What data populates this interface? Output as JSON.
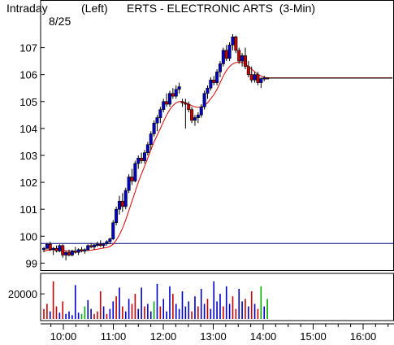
{
  "header": {
    "period": "Intraday",
    "date": "8/25",
    "axis_side": "(Left)",
    "title": "ERTS - ELECTRONIC ARTS  (3-Min)"
  },
  "chart_data": {
    "type": "candlestick",
    "symbol": "ERTS",
    "title": "ERTS - ELECTRONIC ARTS  (3-Min)",
    "y_ticks": [
      99,
      100,
      101,
      102,
      103,
      104,
      105,
      106,
      107
    ],
    "ylim": [
      98.8,
      107.5
    ],
    "x_ticks": [
      "10:00",
      "11:00",
      "12:00",
      "13:00",
      "14:00",
      "15:00",
      "16:00"
    ],
    "reference_level": 99.73,
    "volume_tick": 20000,
    "volume_ylim": [
      0,
      35000
    ],
    "colors": {
      "up": "#0000cc",
      "down": "#cc0000",
      "moving_average": "#dd0000",
      "reference": "#000080",
      "volume_green": "#00aa00"
    },
    "candles": [
      [
        99.5,
        99.6,
        99.4,
        99.55
      ],
      [
        99.55,
        99.75,
        99.5,
        99.7
      ],
      [
        99.7,
        99.8,
        99.45,
        99.5
      ],
      [
        99.5,
        99.6,
        99.3,
        99.55
      ],
      [
        99.55,
        99.65,
        99.4,
        99.45
      ],
      [
        99.45,
        99.7,
        99.4,
        99.65
      ],
      [
        99.65,
        99.7,
        99.2,
        99.3
      ],
      [
        99.3,
        99.45,
        99.1,
        99.4
      ],
      [
        99.4,
        99.5,
        99.25,
        99.3
      ],
      [
        99.3,
        99.5,
        99.25,
        99.45
      ],
      [
        99.45,
        99.6,
        99.35,
        99.4
      ],
      [
        99.4,
        99.55,
        99.3,
        99.5
      ],
      [
        99.5,
        99.6,
        99.4,
        99.45
      ],
      [
        99.45,
        99.55,
        99.35,
        99.5
      ],
      [
        99.5,
        99.7,
        99.45,
        99.65
      ],
      [
        99.65,
        99.75,
        99.55,
        99.6
      ],
      [
        99.6,
        99.7,
        99.5,
        99.68
      ],
      [
        99.68,
        99.8,
        99.6,
        99.7
      ],
      [
        99.7,
        99.85,
        99.6,
        99.65
      ],
      [
        99.65,
        99.75,
        99.55,
        99.72
      ],
      [
        99.72,
        99.85,
        99.65,
        99.8
      ],
      [
        99.8,
        99.95,
        99.7,
        99.9
      ],
      [
        99.9,
        100.6,
        99.85,
        100.5
      ],
      [
        100.5,
        101.1,
        100.4,
        101.0
      ],
      [
        101.0,
        101.5,
        100.8,
        101.3
      ],
      [
        101.3,
        101.6,
        100.9,
        101.1
      ],
      [
        101.1,
        101.8,
        101.0,
        101.7
      ],
      [
        101.7,
        102.3,
        101.6,
        102.2
      ],
      [
        102.2,
        102.5,
        101.9,
        102.05
      ],
      [
        102.05,
        102.8,
        102.0,
        102.7
      ],
      [
        102.7,
        103.0,
        102.5,
        102.9
      ],
      [
        102.9,
        103.1,
        102.7,
        102.8
      ],
      [
        102.8,
        103.2,
        102.7,
        103.1
      ],
      [
        103.1,
        103.5,
        103.0,
        103.4
      ],
      [
        103.4,
        103.9,
        103.2,
        103.8
      ],
      [
        103.8,
        104.3,
        103.7,
        104.2
      ],
      [
        104.2,
        104.5,
        103.9,
        104.4
      ],
      [
        104.4,
        104.8,
        104.2,
        104.7
      ],
      [
        104.7,
        105.1,
        104.6,
        105.0
      ],
      [
        105.0,
        105.3,
        104.8,
        104.9
      ],
      [
        104.9,
        105.4,
        104.8,
        105.3
      ],
      [
        105.3,
        105.5,
        105.1,
        105.2
      ],
      [
        105.2,
        105.6,
        105.1,
        105.45
      ],
      [
        105.45,
        105.7,
        105.3,
        105.55
      ],
      [
        105.0,
        105.1,
        104.8,
        104.95
      ],
      [
        104.95,
        105.1,
        104.0,
        104.9
      ],
      [
        104.9,
        105.0,
        104.6,
        104.7
      ],
      [
        104.7,
        104.8,
        104.2,
        104.3
      ],
      [
        104.3,
        104.5,
        104.1,
        104.4
      ],
      [
        104.4,
        104.6,
        104.2,
        104.5
      ],
      [
        104.5,
        104.9,
        104.4,
        104.8
      ],
      [
        104.8,
        105.4,
        104.7,
        105.3
      ],
      [
        105.3,
        105.6,
        105.1,
        105.5
      ],
      [
        105.5,
        105.9,
        105.4,
        105.8
      ],
      [
        105.8,
        105.95,
        105.6,
        105.7
      ],
      [
        105.7,
        106.2,
        105.6,
        106.1
      ],
      [
        106.1,
        106.5,
        105.9,
        106.4
      ],
      [
        106.4,
        107.0,
        106.3,
        106.9
      ],
      [
        106.9,
        107.1,
        106.5,
        106.6
      ],
      [
        106.6,
        107.2,
        106.5,
        107.1
      ],
      [
        107.1,
        107.5,
        106.9,
        107.4
      ],
      [
        107.4,
        107.45,
        106.8,
        106.9
      ],
      [
        106.9,
        107.0,
        106.4,
        106.5
      ],
      [
        106.5,
        106.8,
        106.3,
        106.7
      ],
      [
        106.7,
        107.0,
        106.2,
        106.3
      ],
      [
        106.3,
        106.5,
        105.9,
        106.0
      ],
      [
        106.0,
        106.3,
        105.7,
        105.8
      ],
      [
        105.8,
        106.1,
        105.7,
        106.0
      ],
      [
        106.0,
        106.1,
        105.6,
        105.7
      ],
      [
        105.7,
        105.9,
        105.5,
        105.85
      ],
      [
        105.85,
        105.95,
        105.75,
        105.88
      ],
      [
        105.88,
        105.9,
        105.84,
        105.87
      ]
    ],
    "moving_average": [
      99.45,
      99.47,
      99.49,
      99.5,
      99.5,
      99.5,
      99.48,
      99.46,
      99.45,
      99.45,
      99.45,
      99.45,
      99.45,
      99.46,
      99.47,
      99.48,
      99.5,
      99.52,
      99.54,
      99.56,
      99.58,
      99.62,
      99.7,
      99.85,
      100.05,
      100.3,
      100.6,
      100.95,
      101.3,
      101.65,
      102.0,
      102.3,
      102.6,
      102.9,
      103.2,
      103.5,
      103.75,
      104.0,
      104.25,
      104.5,
      104.7,
      104.85,
      104.95,
      105.0,
      105.0,
      104.95,
      104.9,
      104.85,
      104.8,
      104.78,
      104.8,
      104.85,
      104.95,
      105.1,
      105.25,
      105.45,
      105.7,
      105.95,
      106.15,
      106.3,
      106.4,
      106.45,
      106.45,
      106.45,
      106.4,
      106.3,
      106.2,
      106.1,
      106.0,
      105.95,
      105.9,
      105.88
    ],
    "volume": [
      8000,
      12000,
      6000,
      30000,
      10000,
      5000,
      14000,
      4000,
      6000,
      3000,
      27000,
      5000,
      4000,
      10000,
      15000,
      8000,
      4000,
      6000,
      22000,
      10000,
      4000,
      8000,
      14000,
      18000,
      25000,
      10000,
      6000,
      16000,
      12000,
      20000,
      8000,
      25000,
      10000,
      12000,
      6000,
      14000,
      28000,
      10000,
      16000,
      6000,
      26000,
      20000,
      12000,
      8000,
      22000,
      10000,
      14000,
      6000,
      18000,
      10000,
      24000,
      12000,
      16000,
      8000,
      30000,
      14000,
      20000,
      10000,
      26000,
      12000,
      18000,
      8000,
      24000,
      14000,
      16000,
      10000,
      22000,
      12000,
      8000,
      26000,
      10000,
      16000
    ],
    "volume_colors": [
      "down",
      "down",
      "up",
      "down",
      "down",
      "up",
      "down",
      "up",
      "up",
      "up",
      "up",
      "up",
      "green",
      "green",
      "up",
      "up",
      "down",
      "down",
      "down",
      "up",
      "down",
      "up",
      "up",
      "down",
      "up",
      "down",
      "up",
      "up",
      "down",
      "down",
      "up",
      "up",
      "down",
      "up",
      "up",
      "green",
      "up",
      "down",
      "up",
      "up",
      "up",
      "down",
      "up",
      "up",
      "up",
      "up",
      "up",
      "down",
      "up",
      "down",
      "up",
      "up",
      "down",
      "up",
      "up",
      "up",
      "up",
      "down",
      "up",
      "up",
      "down",
      "down",
      "up",
      "up",
      "down",
      "up",
      "down",
      "up",
      "down",
      "green",
      "up",
      "green"
    ]
  }
}
